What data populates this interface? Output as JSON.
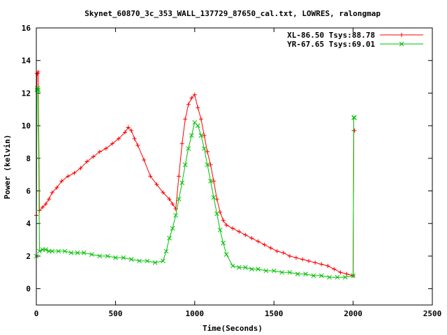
{
  "chart_data": {
    "type": "line",
    "title": "Skynet_60870_3c_353_WALL_137729_87650_cal.txt, LOWRES, ralongmap",
    "xlabel": "Time(Seconds)",
    "ylabel": "Power (kelvin)",
    "xlim": [
      0,
      2500
    ],
    "ylim": [
      -1,
      16
    ],
    "xticks": [
      0,
      500,
      1000,
      1500,
      2000,
      2500
    ],
    "yticks": [
      0,
      2,
      4,
      6,
      8,
      10,
      12,
      14,
      16
    ],
    "grid": false,
    "legend_position": "top-right",
    "series": [
      {
        "name": "XL-86.50 Tsys:88.78",
        "color": "#ff0000",
        "marker": "plus",
        "x": [
          0,
          4,
          8,
          12,
          20,
          40,
          60,
          80,
          100,
          130,
          160,
          200,
          240,
          280,
          320,
          360,
          400,
          440,
          480,
          520,
          560,
          580,
          600,
          620,
          640,
          680,
          720,
          760,
          800,
          840,
          860,
          880,
          900,
          920,
          940,
          960,
          980,
          1000,
          1020,
          1040,
          1060,
          1080,
          1100,
          1120,
          1140,
          1160,
          1180,
          1200,
          1240,
          1280,
          1320,
          1360,
          1400,
          1440,
          1480,
          1520,
          1560,
          1600,
          1640,
          1680,
          1720,
          1760,
          1800,
          1840,
          1880,
          1920,
          1960,
          2000,
          2004,
          2008
        ],
        "y": [
          4.5,
          13.2,
          13.2,
          13.3,
          4.8,
          5.0,
          5.2,
          5.5,
          5.9,
          6.2,
          6.6,
          6.9,
          7.1,
          7.4,
          7.8,
          8.1,
          8.4,
          8.6,
          8.9,
          9.2,
          9.6,
          9.9,
          9.7,
          9.2,
          8.8,
          7.9,
          6.9,
          6.4,
          5.9,
          5.5,
          5.2,
          4.9,
          6.9,
          8.9,
          10.4,
          11.3,
          11.7,
          11.9,
          11.1,
          10.4,
          9.4,
          8.4,
          7.6,
          6.6,
          5.5,
          4.7,
          4.2,
          3.9,
          3.7,
          3.5,
          3.3,
          3.1,
          2.9,
          2.7,
          2.5,
          2.3,
          2.2,
          2.0,
          1.9,
          1.8,
          1.7,
          1.6,
          1.5,
          1.4,
          1.2,
          1.0,
          0.9,
          0.8,
          9.7,
          9.7
        ]
      },
      {
        "name": "YR-67.65 Tsys:69.01",
        "color": "#00c000",
        "marker": "cross",
        "x": [
          0,
          4,
          8,
          12,
          20,
          40,
          60,
          80,
          100,
          140,
          180,
          220,
          260,
          300,
          350,
          400,
          450,
          500,
          550,
          600,
          650,
          700,
          750,
          800,
          820,
          840,
          860,
          880,
          900,
          920,
          940,
          960,
          980,
          1000,
          1020,
          1040,
          1060,
          1080,
          1100,
          1120,
          1140,
          1160,
          1180,
          1200,
          1240,
          1280,
          1320,
          1360,
          1400,
          1450,
          1500,
          1550,
          1600,
          1650,
          1700,
          1750,
          1800,
          1850,
          1900,
          1950,
          2000,
          2004,
          2008
        ],
        "y": [
          2.0,
          12.2,
          12.3,
          12.2,
          2.3,
          2.4,
          2.4,
          2.3,
          2.3,
          2.3,
          2.3,
          2.2,
          2.2,
          2.2,
          2.1,
          2.0,
          2.0,
          1.9,
          1.9,
          1.8,
          1.7,
          1.7,
          1.6,
          1.7,
          2.3,
          3.1,
          3.7,
          4.5,
          5.5,
          6.5,
          7.6,
          8.6,
          9.4,
          10.2,
          10.0,
          9.4,
          8.6,
          7.6,
          6.6,
          5.6,
          4.6,
          3.6,
          2.8,
          2.1,
          1.4,
          1.3,
          1.3,
          1.2,
          1.2,
          1.1,
          1.1,
          1.0,
          1.0,
          0.9,
          0.9,
          0.8,
          0.8,
          0.7,
          0.7,
          0.7,
          0.8,
          10.5,
          10.5
        ]
      }
    ]
  }
}
